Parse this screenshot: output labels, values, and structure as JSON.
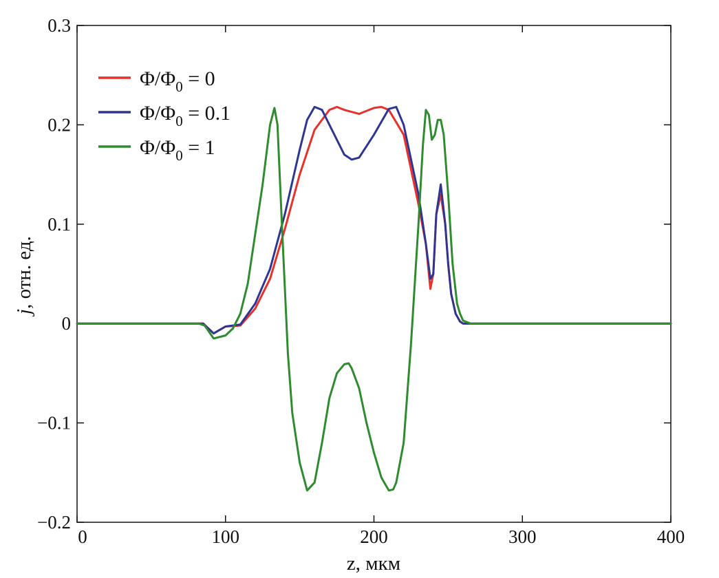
{
  "chart_data": {
    "type": "line",
    "title": "",
    "xlabel": "z, мкм",
    "ylabel_italic": "j",
    "ylabel_rest": ", отн. ед.",
    "xlim": [
      0,
      400
    ],
    "ylim": [
      -0.2,
      0.3
    ],
    "x_ticks": [
      0,
      100,
      200,
      300,
      400
    ],
    "y_ticks": [
      -0.2,
      -0.1,
      0,
      0.1,
      0.2,
      0.3
    ],
    "x_tick_labels": [
      "0",
      "100",
      "200",
      "300",
      "400"
    ],
    "y_tick_labels": [
      "−0.2",
      "−0.1",
      "0",
      "0.1",
      "0.2",
      "0.3"
    ],
    "grid": false,
    "legend_position": "top-left",
    "series": [
      {
        "name": "Φ/Φ0 = 0",
        "legend_main": "Φ/Φ",
        "legend_sub": "0",
        "legend_tail": " = 0",
        "color": "#e8312b",
        "x": [
          0,
          80,
          85,
          92,
          100,
          110,
          120,
          130,
          140,
          150,
          160,
          170,
          175,
          180,
          190,
          200,
          205,
          210,
          220,
          230,
          235,
          238,
          240,
          242,
          245,
          248,
          250,
          252,
          255,
          258,
          260,
          265,
          300,
          400
        ],
        "y": [
          0,
          0,
          0,
          -0.01,
          -0.003,
          -0.002,
          0.015,
          0.045,
          0.095,
          0.15,
          0.195,
          0.215,
          0.218,
          0.215,
          0.211,
          0.217,
          0.218,
          0.215,
          0.19,
          0.12,
          0.08,
          0.035,
          0.05,
          0.11,
          0.13,
          0.1,
          0.06,
          0.03,
          0.01,
          0.002,
          0,
          0,
          0,
          0
        ]
      },
      {
        "name": "Φ/Φ0 = 0.1",
        "legend_main": "Φ/Φ",
        "legend_sub": "0",
        "legend_tail": " = 0.1",
        "color": "#2e3592",
        "x": [
          0,
          80,
          85,
          92,
          100,
          110,
          120,
          130,
          140,
          150,
          155,
          160,
          165,
          170,
          180,
          185,
          190,
          200,
          210,
          215,
          220,
          230,
          235,
          238,
          240,
          242,
          245,
          248,
          250,
          252,
          255,
          258,
          260,
          265,
          300,
          400
        ],
        "y": [
          0,
          0,
          0,
          -0.01,
          -0.003,
          -0.001,
          0.02,
          0.055,
          0.11,
          0.175,
          0.205,
          0.218,
          0.215,
          0.2,
          0.17,
          0.165,
          0.167,
          0.19,
          0.216,
          0.218,
          0.2,
          0.13,
          0.08,
          0.045,
          0.05,
          0.11,
          0.14,
          0.1,
          0.06,
          0.03,
          0.01,
          0.002,
          0,
          0,
          0,
          0
        ]
      },
      {
        "name": "Φ/Φ0 = 1",
        "legend_main": "Φ/Φ",
        "legend_sub": "0",
        "legend_tail": " = 1",
        "color": "#2e8b2e",
        "x": [
          0,
          82,
          86,
          92,
          100,
          105,
          110,
          115,
          120,
          125,
          130,
          133,
          135,
          138,
          142,
          145,
          150,
          155,
          160,
          165,
          170,
          175,
          180,
          183,
          185,
          190,
          195,
          200,
          205,
          210,
          213,
          215,
          220,
          225,
          230,
          233,
          235,
          237,
          239,
          241,
          243,
          245,
          247,
          250,
          253,
          256,
          258,
          260,
          265,
          300,
          400
        ],
        "y": [
          0,
          0,
          -0.002,
          -0.015,
          -0.012,
          -0.005,
          0.01,
          0.04,
          0.09,
          0.14,
          0.2,
          0.217,
          0.2,
          0.1,
          -0.03,
          -0.09,
          -0.14,
          -0.168,
          -0.16,
          -0.12,
          -0.075,
          -0.05,
          -0.041,
          -0.04,
          -0.045,
          -0.065,
          -0.1,
          -0.13,
          -0.155,
          -0.168,
          -0.167,
          -0.16,
          -0.12,
          -0.02,
          0.1,
          0.18,
          0.215,
          0.21,
          0.185,
          0.19,
          0.205,
          0.205,
          0.19,
          0.13,
          0.06,
          0.02,
          0.01,
          0.003,
          0,
          0,
          0
        ]
      }
    ]
  }
}
